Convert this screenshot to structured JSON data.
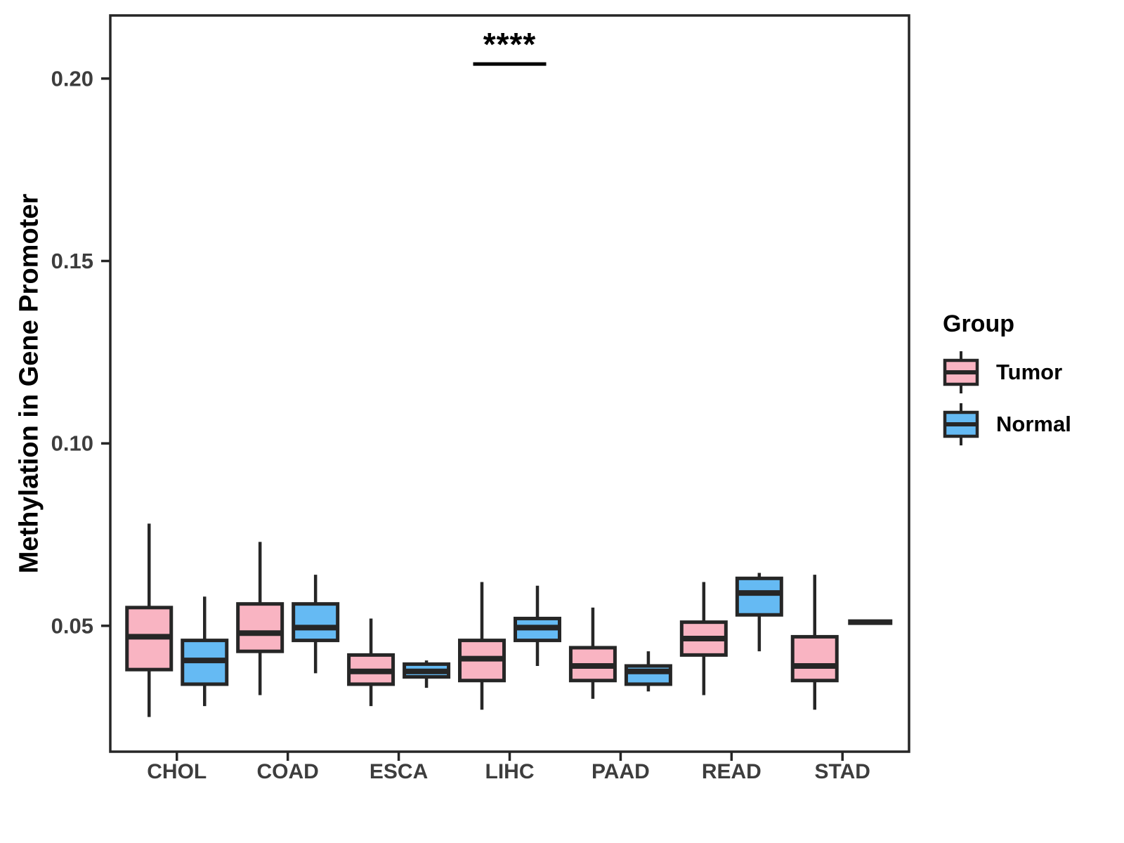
{
  "figure": {
    "background": "#ffffff",
    "panel_border_color": "#262626",
    "box_stroke_color": "#262626",
    "tick_label_color": "#3d3d3d"
  },
  "y_axis": {
    "title": "Methylation in Gene Promoter",
    "tick_labels": [
      "0.05",
      "0.10",
      "0.15",
      "0.20"
    ],
    "ticks": [
      0.05,
      0.1,
      0.15,
      0.2
    ],
    "range": [
      0.0155,
      0.2173
    ]
  },
  "x_axis": {
    "categories": [
      "CHOL",
      "COAD",
      "ESCA",
      "LIHC",
      "PAAD",
      "READ",
      "STAD"
    ]
  },
  "legend": {
    "title": "Group",
    "entries": [
      {
        "label": "Tumor",
        "color": "#F9B4C2"
      },
      {
        "label": "Normal",
        "color": "#65BAF3"
      }
    ]
  },
  "annotation": {
    "text": "****",
    "category": "LIHC",
    "y": 0.204
  },
  "chart_data": {
    "type": "boxplot-grouped",
    "title": "",
    "xlabel": "",
    "ylabel": "Methylation in Gene Promoter",
    "ylim": [
      0.0155,
      0.2173
    ],
    "grid": false,
    "legend_position": "right",
    "categories": [
      "CHOL",
      "COAD",
      "ESCA",
      "LIHC",
      "PAAD",
      "READ",
      "STAD"
    ],
    "series": [
      {
        "name": "Tumor",
        "color": "#F9B4C2",
        "boxes": [
          {
            "low": 0.025,
            "q1": 0.038,
            "median": 0.047,
            "q3": 0.055,
            "high": 0.078
          },
          {
            "low": 0.031,
            "q1": 0.043,
            "median": 0.048,
            "q3": 0.056,
            "high": 0.073
          },
          {
            "low": 0.028,
            "q1": 0.034,
            "median": 0.0375,
            "q3": 0.042,
            "high": 0.052
          },
          {
            "low": 0.027,
            "q1": 0.035,
            "median": 0.041,
            "q3": 0.046,
            "high": 0.062
          },
          {
            "low": 0.03,
            "q1": 0.035,
            "median": 0.039,
            "q3": 0.044,
            "high": 0.055
          },
          {
            "low": 0.031,
            "q1": 0.042,
            "median": 0.0465,
            "q3": 0.051,
            "high": 0.062
          },
          {
            "low": 0.027,
            "q1": 0.035,
            "median": 0.039,
            "q3": 0.047,
            "high": 0.064
          }
        ]
      },
      {
        "name": "Normal",
        "color": "#65BAF3",
        "boxes": [
          {
            "low": 0.028,
            "q1": 0.034,
            "median": 0.0405,
            "q3": 0.046,
            "high": 0.058
          },
          {
            "low": 0.037,
            "q1": 0.046,
            "median": 0.0495,
            "q3": 0.056,
            "high": 0.064
          },
          {
            "low": 0.033,
            "q1": 0.036,
            "median": 0.0375,
            "q3": 0.0395,
            "high": 0.0405
          },
          {
            "low": 0.039,
            "q1": 0.046,
            "median": 0.0495,
            "q3": 0.052,
            "high": 0.061
          },
          {
            "low": 0.032,
            "q1": 0.034,
            "median": 0.0375,
            "q3": 0.039,
            "high": 0.043
          },
          {
            "low": 0.043,
            "q1": 0.053,
            "median": 0.059,
            "q3": 0.063,
            "high": 0.0645
          },
          {
            "low": 0.051,
            "q1": 0.051,
            "median": 0.051,
            "q3": 0.051,
            "high": 0.051
          }
        ]
      }
    ]
  }
}
